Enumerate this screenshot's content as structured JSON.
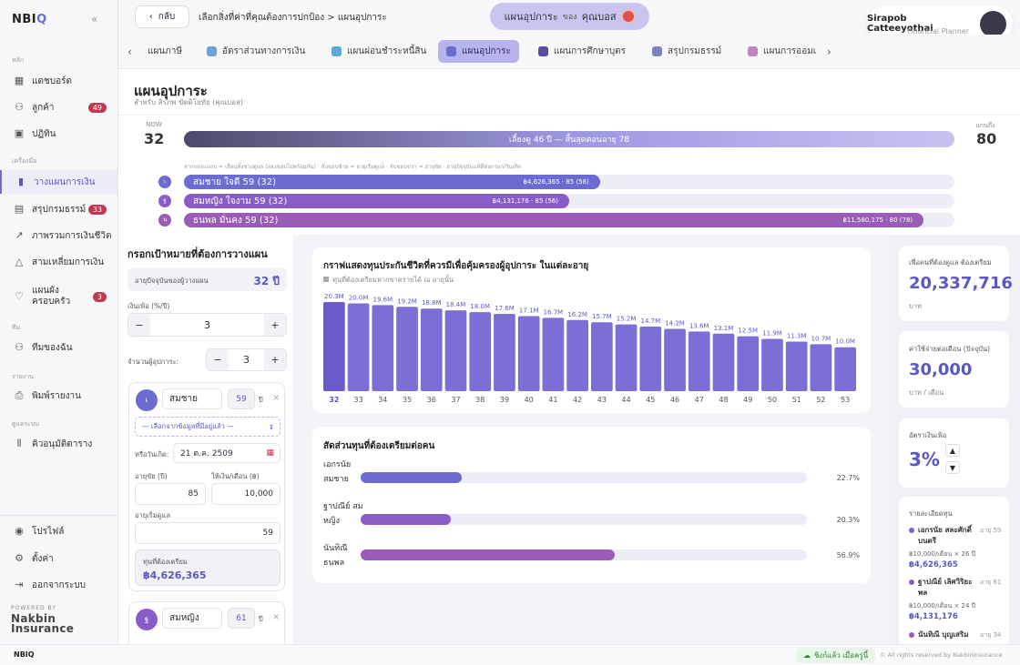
{
  "sidebar": {
    "logo_main": "NBI",
    "logo_accent": "Q",
    "collapse_icon": "«",
    "sections": {
      "main": "หลัก",
      "tools": "เครื่องมือ",
      "team": "ทีม",
      "report": "รายงาน",
      "admin": "ดูแลระบบ"
    },
    "items": [
      {
        "label": "แดชบอร์ด",
        "icon": "grid-icon"
      },
      {
        "label": "ลูกค้า",
        "icon": "users-icon",
        "badge": "49"
      },
      {
        "label": "ปฏิทิน",
        "icon": "calendar-icon"
      },
      {
        "label": "วางแผนการเงิน",
        "icon": "bar-chart-icon",
        "active": true
      },
      {
        "label": "สรุปกรมธรรม์",
        "icon": "document-icon",
        "badge": "33"
      },
      {
        "label": "ภาพรวมการเงินชีวิต",
        "icon": "trend-icon"
      },
      {
        "label": "สามเหลี่ยมการเงิน",
        "icon": "triangle-icon"
      },
      {
        "label": "แผนผังครอบครัว",
        "icon": "heart-icon",
        "badge": "3"
      },
      {
        "label": "ทีมของฉัน",
        "icon": "team-icon"
      },
      {
        "label": "พิมพ์รายงาน",
        "icon": "printer-icon"
      },
      {
        "label": "คิวอนุมัติตาราง",
        "icon": "queue-icon"
      }
    ],
    "bottom": [
      {
        "label": "โปรไฟล์",
        "icon": "profile-icon"
      },
      {
        "label": "ตั้งค่า",
        "icon": "gear-icon"
      },
      {
        "label": "ออกจากระบบ",
        "icon": "logout-icon"
      }
    ],
    "powered_by": "POWERED BY",
    "brand_line1": "Nakbin",
    "brand_line2": "Insurance"
  },
  "header": {
    "back_label": "กลับ",
    "breadcrumb": "เลือกสิ่งที่ค่าที่คุณต้องการปกป้อง > แผนอุปการะ",
    "plan_label": "แผนอุปการะ",
    "plan_of": "ของ",
    "plan_client": "คุณบอส",
    "user_name": "Sirapob Catteeyothai",
    "user_role": "Financial Planner"
  },
  "tabs": [
    {
      "label": "แผนภาษี",
      "color": "#ffffff"
    },
    {
      "label": "อัตราส่วนทางการเงิน",
      "color": "#6aa2d8"
    },
    {
      "label": "แผนผ่อนชำระหนี้สิน",
      "color": "#5fa6d9"
    },
    {
      "label": "แผนอุปการะ",
      "color": "#6b6bd0",
      "active": true
    },
    {
      "label": "แผนการศึกษาบุตร",
      "color": "#5c4ba6"
    },
    {
      "label": "สรุปกรมธรรม์",
      "color": "#7b82c0"
    },
    {
      "label": "แผนการออมเ",
      "color": "#c483c0"
    }
  ],
  "page": {
    "title": "แผนอุปการะ",
    "subtitle": "สำหรับ สิรภพ ขัตติโยทัย (คุณบอส)"
  },
  "timeline": {
    "now_label": "NOW",
    "now_age": "32",
    "end_label": "แกนถึง",
    "end_age": "80",
    "bar_label": "เลี้ยงดู 46 ปี — สิ้นสุดตอนอายุ 78",
    "note": "ลากกดจะแถบ = เลื่อนทั้งช่วงดูแล (ลองขอบไปพร้อมกัน) · จับขอบซ้าย = อายุเริ่มดูแล · จับขอบขวา = อายุขัย · อายุปัจจุบันแท้ที่ต่อกรอก/วันเกิด",
    "rows": [
      {
        "initial": "เ",
        "label": "สมชาย ใจดี 59 (32)",
        "amount": "฿4,626,365 · 85 (58)",
        "fill": 0.54,
        "color": "#6b6bd0"
      },
      {
        "initial": "ฐ",
        "label": "สมหญิง ใจงาม 59 (32)",
        "amount": "฿4,131,176 · 85 (56)",
        "fill": 0.5,
        "color": "#8a5cc8"
      },
      {
        "initial": "น",
        "label": "ธนพล มั่นคง 59 (32)",
        "amount": "฿11,580,175 · 80 (78)",
        "fill": 0.96,
        "color": "#9b5cb8"
      }
    ]
  },
  "form": {
    "title": "กรอกเป้าหมายที่ต้องการวางแผน",
    "current_age_label": "อายุปัจจุบันของผู้วางแผน",
    "current_age_value": "32 ปี",
    "inflation_label": "เงินเฟ้อ (%/ปี)",
    "inflation_value": "3",
    "dependents_label": "จำนวนผู้อุปการะ:",
    "dependents_value": "3",
    "person1": {
      "initial": "เ",
      "name": "สมชาย",
      "age": "59",
      "age_unit": "ปี",
      "select_placeholder": "— เลือกจากข้อมูลที่มีอยู่แล้ว —",
      "birth_label": "หรือวันเกิด:",
      "birth_value": "21 ต.ค. 2509",
      "life_label": "อายุขัย (ปี)",
      "life_value": "85",
      "monthly_label": "ให้เงิน/เดือน (฿)",
      "monthly_value": "10,000",
      "start_label": "อายุเริ่มดูแล",
      "start_value": "59",
      "fund_label": "ทุนที่ต้องเตรียม",
      "fund_value": "฿4,626,365"
    },
    "person2": {
      "initial": "ฐ",
      "name": "สมหญิง",
      "age": "61",
      "age_unit": "ปี"
    },
    "minus": "−",
    "plus": "+",
    "close": "×"
  },
  "chart_card": {
    "title": "กราฟแสดงทุนประกันชีวิตที่ควรมีเพื่อคุ้มครองผู้อุปการะ ในแต่ละอายุ",
    "subtitle": "ทุนที่ต้องเตรียมหากขาดรายได้ ณ อายุนั้น"
  },
  "chart_data": {
    "type": "bar",
    "categories": [
      "32",
      "33",
      "34",
      "35",
      "36",
      "37",
      "38",
      "39",
      "40",
      "41",
      "42",
      "43",
      "44",
      "45",
      "46",
      "47",
      "48",
      "49",
      "50",
      "51",
      "52",
      "53"
    ],
    "values": [
      20.3,
      20.0,
      19.6,
      19.2,
      18.8,
      18.4,
      18.0,
      17.6,
      17.1,
      16.7,
      16.2,
      15.7,
      15.2,
      14.7,
      14.2,
      13.6,
      13.1,
      12.5,
      11.9,
      11.3,
      10.7,
      10.0
    ],
    "data_labels": [
      "20.3M",
      "20.0M",
      "19.6M",
      "19.2M",
      "18.8M",
      "18.4M",
      "18.0M",
      "17.6M",
      "17.1M",
      "16.7M",
      "16.2M",
      "15.7M",
      "15.2M",
      "14.7M",
      "14.2M",
      "13.6M",
      "13.1M",
      "12.5M",
      "11.9M",
      "11.3M",
      "10.7M",
      "10.0M"
    ],
    "highlight_category": "32",
    "colors": {
      "bar": "#7b6fd6",
      "highlight": "#6a5cc8"
    }
  },
  "ratio_card": {
    "title": "สัดส่วนทุนที่ต้องเตรียมต่อคน",
    "rows": [
      {
        "name": "เอกรนัย สมชาย",
        "pct": "22.7%",
        "value": 0.227,
        "color": "#6b6bd0"
      },
      {
        "name": "ฐาปณีย์ สมหญิง",
        "pct": "20.3%",
        "value": 0.203,
        "color": "#8a5cc8"
      },
      {
        "name": "นันทิณี ธนพล",
        "pct": "56.9%",
        "value": 0.569,
        "color": "#9b5cb8"
      }
    ]
  },
  "stats": {
    "fund_label": "เพื่อคนที่ต้องดูแล ต้องเตรียม",
    "fund_value": "20,337,716",
    "fund_unit": "บาท",
    "monthly_label": "ค่าใช้จ่ายต่อเดือน (ปัจจุบัน)",
    "monthly_value": "30,000",
    "monthly_unit": "บาท / เดือน",
    "inflation_label": "อัตราเงินเฟ้อ",
    "inflation_value": "3%",
    "up": "▲",
    "down": "▼",
    "detail_label": "รายละเอียดทุน",
    "details": [
      {
        "name": "เอกรนัย สละศักดิ์บนตรี",
        "age": "อายุ 59",
        "line": "฿10,000/เดือน × 26 ปี",
        "amount": "฿4,626,365",
        "color": "#6b6bd0"
      },
      {
        "name": "ฐาปณีย์ เลิศวิริยะพล",
        "age": "อายุ 61",
        "line": "฿10,000/เดือน × 24 ปี",
        "amount": "฿4,131,176",
        "color": "#8a5cc8"
      },
      {
        "name": "นันทิณี บุญเสริม",
        "age": "อายุ 34",
        "line": "",
        "amount": "",
        "color": "#9b5cb8"
      }
    ]
  },
  "footer": {
    "logo": "NBIQ",
    "sync": "ซิงก์แล้ว เมื่อครู่นี้",
    "copyright": "© All rights reserved by Nakbininsurance"
  }
}
